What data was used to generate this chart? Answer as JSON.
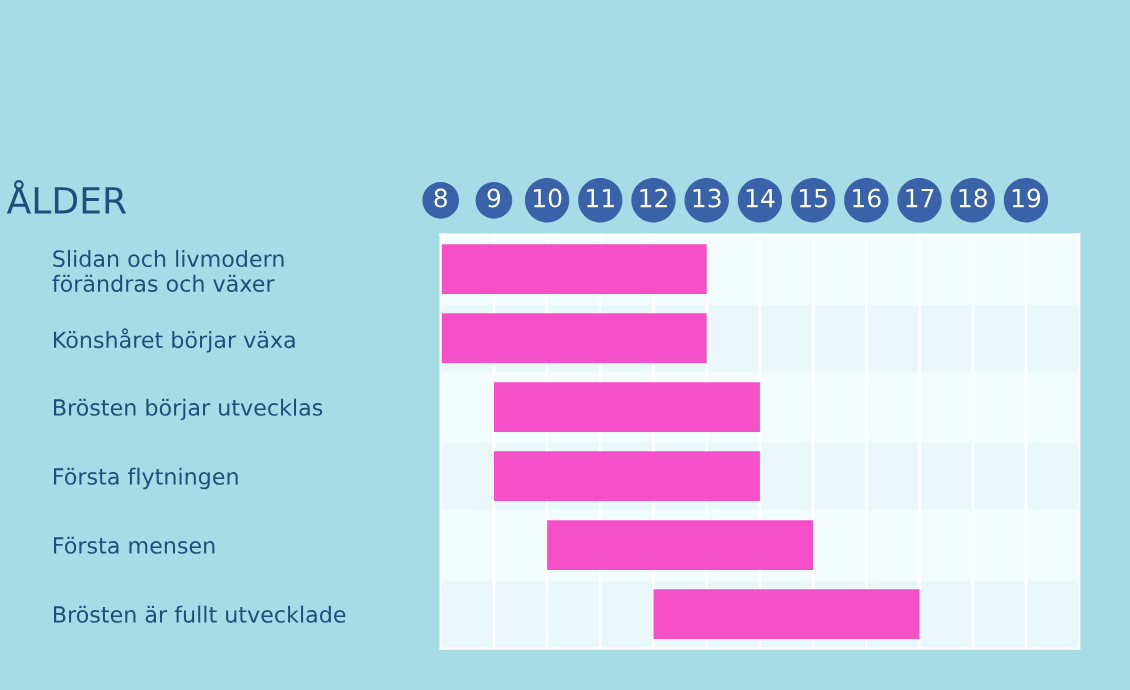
{
  "chart_data": {
    "type": "bar",
    "orientation": "horizontal",
    "ylabel": "ÅLDER",
    "categories": [
      "Slidan och livmodern\nförändras och växer",
      "Könshåret börjar växa",
      "Brösten börjar utvecklas",
      "Första flytningen",
      "Första mensen",
      "Brösten är fullt utvecklade"
    ],
    "values": [
      5,
      5,
      5,
      5,
      5,
      5
    ],
    "base": [
      8,
      8,
      9,
      9,
      10,
      12
    ],
    "color": "#f550c8",
    "xlim": [
      8,
      20
    ],
    "xticks": [
      8,
      9,
      10,
      11,
      12,
      13,
      14,
      15,
      16,
      17,
      18,
      19
    ],
    "grid": "x"
  }
}
